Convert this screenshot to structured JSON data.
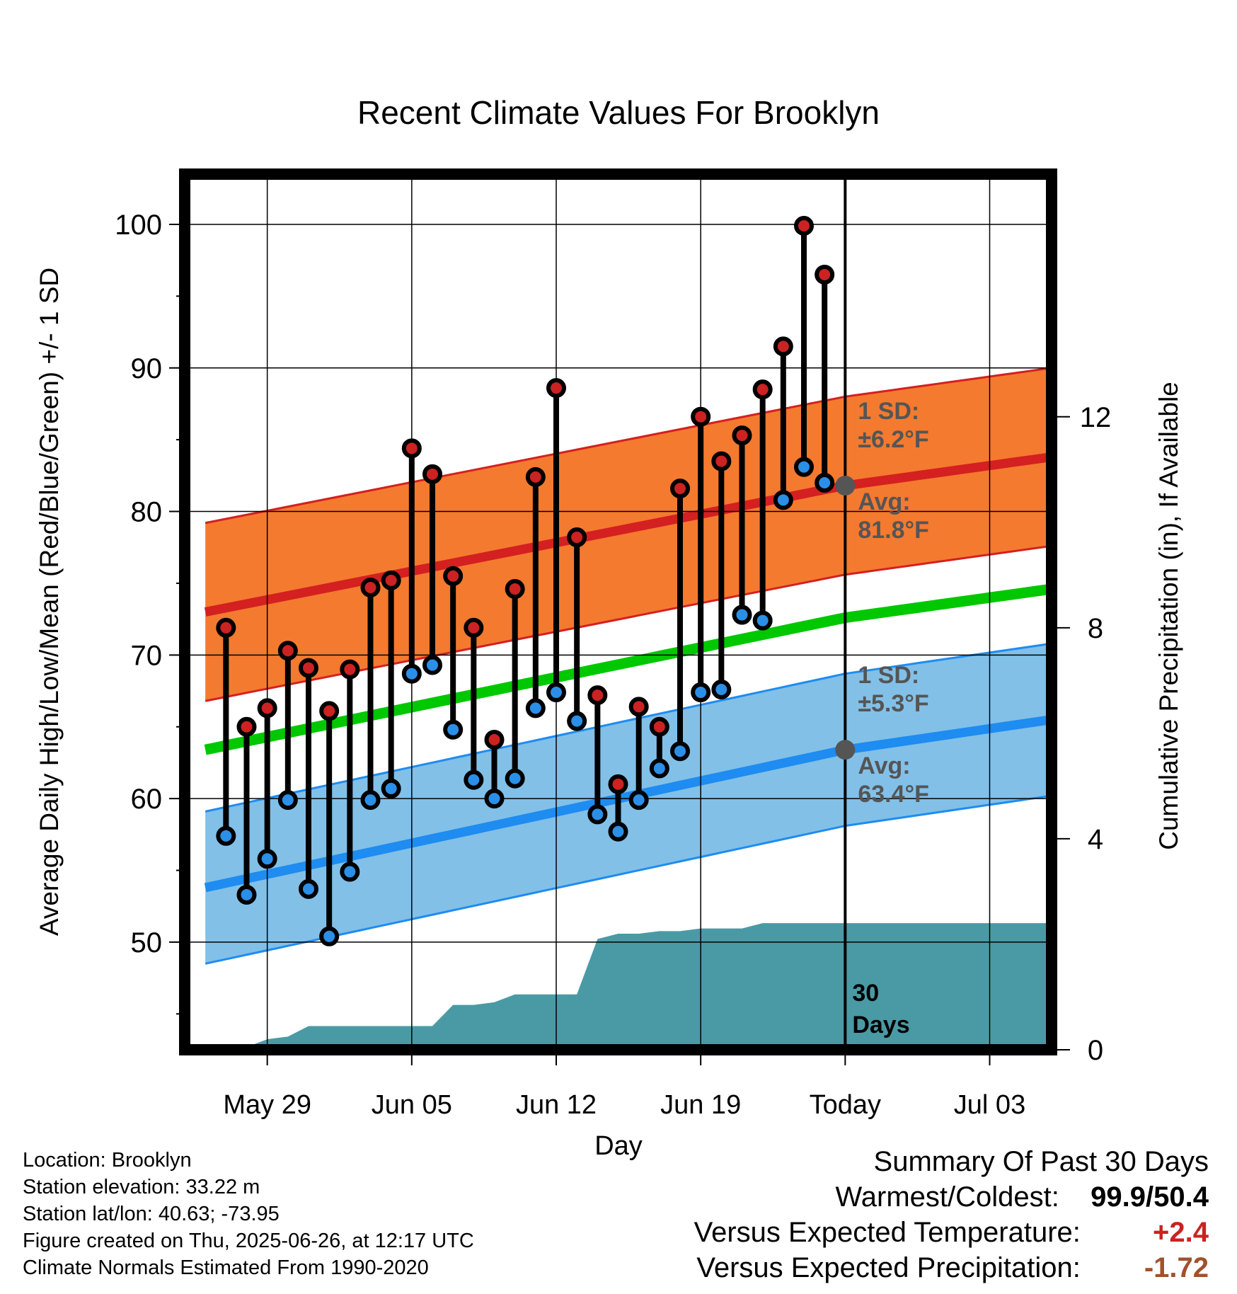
{
  "chart_data": {
    "type": "line",
    "title": "Recent Climate Values For Brooklyn",
    "xlabel": "Day",
    "ylabel": "Average Daily High/Low/Mean (Red/Blue/Green) +/- 1 SD",
    "ylabel_right": "Cumulative Precipitation (in), If Available",
    "x_ticks": [
      "May 29",
      "Jun 05",
      "Jun 12",
      "Jun 19",
      "Today",
      "Jul 03"
    ],
    "x_tick_dates": [
      "2025-05-29",
      "2025-06-05",
      "2025-06-12",
      "2025-06-19",
      "2025-06-26",
      "2025-07-03"
    ],
    "xlim": [
      "2025-05-25",
      "2025-07-06"
    ],
    "ylim": [
      42.5,
      103.5
    ],
    "y_ticks": [
      50,
      60,
      70,
      80,
      90,
      100
    ],
    "ylim_right": [
      0,
      16.6
    ],
    "y_ticks_right": [
      0,
      4,
      8,
      12
    ],
    "grid": true,
    "daily_dates": [
      "2025-05-27",
      "2025-05-28",
      "2025-05-29",
      "2025-05-30",
      "2025-05-31",
      "2025-06-01",
      "2025-06-02",
      "2025-06-03",
      "2025-06-04",
      "2025-06-05",
      "2025-06-06",
      "2025-06-07",
      "2025-06-08",
      "2025-06-09",
      "2025-06-10",
      "2025-06-11",
      "2025-06-12",
      "2025-06-13",
      "2025-06-14",
      "2025-06-15",
      "2025-06-16",
      "2025-06-17",
      "2025-06-18",
      "2025-06-19",
      "2025-06-20",
      "2025-06-21",
      "2025-06-22",
      "2025-06-23",
      "2025-06-24",
      "2025-06-25"
    ],
    "series": [
      {
        "name": "Daily High",
        "color": "#cc2222",
        "values": [
          71.9,
          65.0,
          66.3,
          70.3,
          69.1,
          66.1,
          69.0,
          74.7,
          75.2,
          84.4,
          82.6,
          75.5,
          71.9,
          64.1,
          74.6,
          82.4,
          88.6,
          78.2,
          67.2,
          61.0,
          66.4,
          65.0,
          81.6,
          86.6,
          83.5,
          85.3,
          88.5,
          91.5,
          99.9,
          96.5
        ]
      },
      {
        "name": "Daily Low",
        "color": "#2b8fe8",
        "values": [
          57.4,
          53.3,
          55.8,
          59.9,
          53.7,
          50.4,
          54.9,
          59.9,
          60.7,
          68.7,
          69.3,
          64.8,
          61.3,
          60.0,
          61.4,
          66.3,
          67.4,
          65.4,
          58.9,
          57.7,
          59.9,
          62.1,
          63.3,
          67.4,
          67.6,
          72.8,
          72.4,
          80.8,
          83.1,
          82.0
        ]
      }
    ],
    "normal_dates": [
      "2025-05-26",
      "2025-06-26",
      "2025-07-06"
    ],
    "normal_high": {
      "avg": [
        73.0,
        81.8,
        83.8
      ],
      "sd": 6.2,
      "label_sd": "1 SD:",
      "label_sd_value": "±6.2°F",
      "label_avg": "Avg:",
      "label_avg_value": "81.8°F"
    },
    "normal_low": {
      "avg": [
        53.8,
        63.4,
        65.5
      ],
      "sd": 5.3,
      "label_sd": "1 SD:",
      "label_sd_value": "±5.3°F",
      "label_avg": "Avg:",
      "label_avg_value": "63.4°F"
    },
    "normal_mean": [
      63.4,
      72.6,
      74.6
    ],
    "precip_dates": [
      "2025-05-26",
      "2025-05-27",
      "2025-05-28",
      "2025-05-29",
      "2025-05-30",
      "2025-05-31",
      "2025-06-01",
      "2025-06-02",
      "2025-06-03",
      "2025-06-04",
      "2025-06-05",
      "2025-06-06",
      "2025-06-07",
      "2025-06-08",
      "2025-06-09",
      "2025-06-10",
      "2025-06-11",
      "2025-06-12",
      "2025-06-13",
      "2025-06-14",
      "2025-06-15",
      "2025-06-16",
      "2025-06-17",
      "2025-06-18",
      "2025-06-19",
      "2025-06-20",
      "2025-06-21",
      "2025-06-22",
      "2025-06-23",
      "2025-06-24",
      "2025-06-25",
      "2025-06-26",
      "2025-07-06"
    ],
    "cumulative_precip": [
      0.0,
      0.0,
      0.05,
      0.2,
      0.25,
      0.45,
      0.45,
      0.45,
      0.45,
      0.45,
      0.45,
      0.45,
      0.85,
      0.85,
      0.9,
      1.05,
      1.05,
      1.05,
      1.05,
      2.1,
      2.2,
      2.2,
      2.25,
      2.25,
      2.3,
      2.3,
      2.3,
      2.4,
      2.4,
      2.4,
      2.4,
      2.4,
      2.4
    ],
    "precip_label": "30",
    "precip_label2": "Days"
  },
  "colors": {
    "high_band": "#f47a2f",
    "high_line": "#d42020",
    "high_edge": "#d42020",
    "low_band": "#82c0e8",
    "low_line": "#1e8cf0",
    "low_edge": "#1e8cf0",
    "mean_line": "#00c800",
    "precip_fill": "#4a9aa5",
    "high_dot": "#cc2222",
    "low_dot": "#2b8fe8",
    "avg_dot": "#555555",
    "annotation_text": "#555555"
  },
  "info": {
    "location": "Location: Brooklyn",
    "elevation": "Station elevation: 33.22 m",
    "latlon": "Station lat/lon: 40.63; -73.95",
    "created": "Figure created on Thu, 2025-06-26, at 12:17 UTC",
    "normals": "Climate Normals Estimated From 1990-2020"
  },
  "summary": {
    "heading": "Summary Of Past 30 Days",
    "warmest_label": "Warmest/Coldest:",
    "warmest_value": "99.9/50.4",
    "temp_label": "Versus Expected Temperature:",
    "temp_value": "+2.4",
    "temp_color": "#cc2222",
    "precip_label": "Versus Expected Precipitation:",
    "precip_value": "-1.72",
    "precip_color": "#a0522d"
  }
}
